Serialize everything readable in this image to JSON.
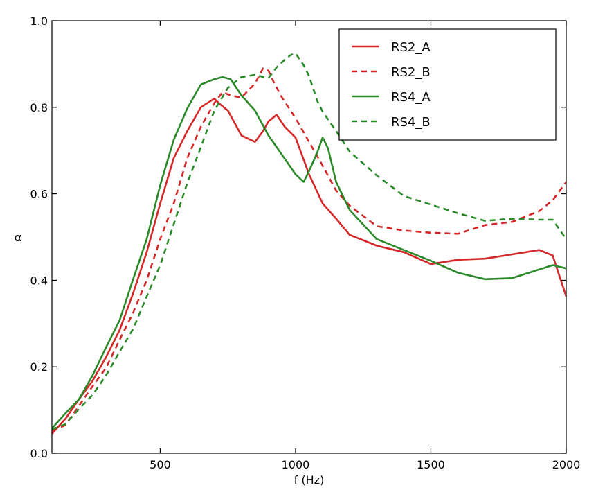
{
  "chart_data": {
    "type": "line",
    "title": "",
    "xlabel": "f (Hz)",
    "ylabel": "α",
    "xlim": [
      100,
      2000
    ],
    "ylim": [
      0.0,
      1.0
    ],
    "x_ticks": [
      500,
      1000,
      1500,
      2000
    ],
    "x_tick_labels": [
      "500",
      "1000",
      "1500",
      "2000"
    ],
    "y_ticks": [
      0.0,
      0.2,
      0.4,
      0.6,
      0.8,
      1.0
    ],
    "y_tick_labels": [
      "0.0",
      "0.2",
      "0.4",
      "0.6",
      "0.8",
      "1.0"
    ],
    "grid": false,
    "legend_position": "top-right",
    "series": [
      {
        "name": "RS2_A",
        "color": "#d62728",
        "dash": "solid",
        "x": [
          100,
          150,
          200,
          250,
          300,
          350,
          400,
          450,
          500,
          550,
          600,
          650,
          700,
          720,
          750,
          800,
          850,
          880,
          900,
          930,
          960,
          1000,
          1050,
          1100,
          1150,
          1200,
          1300,
          1400,
          1500,
          1600,
          1700,
          1800,
          1900,
          1950,
          2000
        ],
        "y": [
          0.05,
          0.08,
          0.12,
          0.17,
          0.22,
          0.29,
          0.37,
          0.46,
          0.58,
          0.68,
          0.75,
          0.8,
          0.815,
          0.81,
          0.79,
          0.74,
          0.72,
          0.74,
          0.77,
          0.78,
          0.76,
          0.73,
          0.64,
          0.58,
          0.54,
          0.51,
          0.48,
          0.46,
          0.44,
          0.445,
          0.455,
          0.46,
          0.465,
          0.46,
          0.36
        ]
      },
      {
        "name": "RS2_B",
        "color": "#d62728",
        "dash": "dashed",
        "x": [
          100,
          150,
          200,
          250,
          300,
          350,
          400,
          450,
          500,
          550,
          600,
          650,
          700,
          730,
          760,
          800,
          850,
          880,
          900,
          920,
          950,
          1000,
          1050,
          1100,
          1150,
          1200,
          1300,
          1400,
          1500,
          1600,
          1700,
          1800,
          1900,
          1950,
          2000
        ],
        "y": [
          0.05,
          0.07,
          0.11,
          0.15,
          0.2,
          0.26,
          0.33,
          0.4,
          0.49,
          0.58,
          0.68,
          0.76,
          0.81,
          0.83,
          0.83,
          0.82,
          0.86,
          0.89,
          0.88,
          0.86,
          0.82,
          0.78,
          0.72,
          0.66,
          0.61,
          0.57,
          0.53,
          0.515,
          0.505,
          0.51,
          0.525,
          0.54,
          0.56,
          0.58,
          0.63
        ]
      },
      {
        "name": "RS4_A",
        "color": "#2a8a2a",
        "dash": "solid",
        "x": [
          100,
          150,
          200,
          250,
          300,
          350,
          400,
          450,
          500,
          550,
          600,
          650,
          700,
          730,
          760,
          800,
          850,
          900,
          950,
          1000,
          1030,
          1050,
          1080,
          1100,
          1120,
          1150,
          1200,
          1300,
          1400,
          1500,
          1600,
          1700,
          1800,
          1900,
          1950,
          2000
        ],
        "y": [
          0.06,
          0.09,
          0.13,
          0.18,
          0.24,
          0.31,
          0.4,
          0.5,
          0.62,
          0.72,
          0.8,
          0.85,
          0.87,
          0.87,
          0.86,
          0.83,
          0.79,
          0.74,
          0.69,
          0.64,
          0.63,
          0.65,
          0.7,
          0.73,
          0.7,
          0.63,
          0.56,
          0.5,
          0.47,
          0.44,
          0.42,
          0.4,
          0.41,
          0.425,
          0.43,
          0.43
        ]
      },
      {
        "name": "RS4_B",
        "color": "#2a8a2a",
        "dash": "dashed",
        "x": [
          100,
          150,
          200,
          250,
          300,
          350,
          400,
          450,
          500,
          550,
          600,
          650,
          700,
          750,
          800,
          850,
          900,
          930,
          960,
          980,
          1000,
          1030,
          1050,
          1080,
          1100,
          1150,
          1200,
          1300,
          1400,
          1500,
          1600,
          1700,
          1800,
          1900,
          1950,
          2000
        ],
        "y": [
          0.05,
          0.07,
          0.1,
          0.14,
          0.18,
          0.23,
          0.29,
          0.36,
          0.44,
          0.53,
          0.62,
          0.71,
          0.79,
          0.85,
          0.87,
          0.87,
          0.87,
          0.89,
          0.915,
          0.92,
          0.92,
          0.9,
          0.87,
          0.82,
          0.79,
          0.74,
          0.7,
          0.64,
          0.6,
          0.575,
          0.55,
          0.54,
          0.54,
          0.545,
          0.54,
          0.49
        ]
      }
    ]
  }
}
